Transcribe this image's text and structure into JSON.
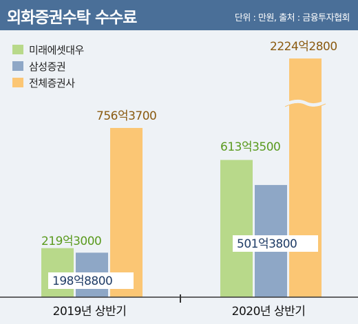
{
  "header": {
    "title": "외화증권수탁 수수료",
    "source": "단위 : 만원, 출처 : 금융투자협회"
  },
  "legend": [
    {
      "label": "미래에셋대우",
      "color": "#b8d98a"
    },
    {
      "label": "삼성증권",
      "color": "#8ea7c6"
    },
    {
      "label": "전체증권사",
      "color": "#fbc674"
    }
  ],
  "colors": {
    "mirae_label": "#5a9a1e",
    "samsung_label": "#1f3c66",
    "total_label": "#8a5a10",
    "axis": "#333333"
  },
  "chart_data": {
    "type": "bar",
    "title": "외화증권수탁 수수료",
    "unit": "만원",
    "categories": [
      "2019년 상반기",
      "2020년 상반기"
    ],
    "axis_break": "between 613억3500 and 2224억2800 on the 전체증권사 2020 bar",
    "series": [
      {
        "name": "미래에셋대우",
        "values": [
          2193000,
          6133500
        ],
        "labels": [
          "219억3000",
          "613억3500"
        ]
      },
      {
        "name": "삼성증권",
        "values": [
          1988800,
          5013800
        ],
        "labels": [
          "198억8800",
          "501억3800"
        ]
      },
      {
        "name": "전체증권사",
        "values": [
          7563700,
          22242800
        ],
        "labels": [
          "756억3700",
          "2224억2800"
        ]
      }
    ]
  }
}
